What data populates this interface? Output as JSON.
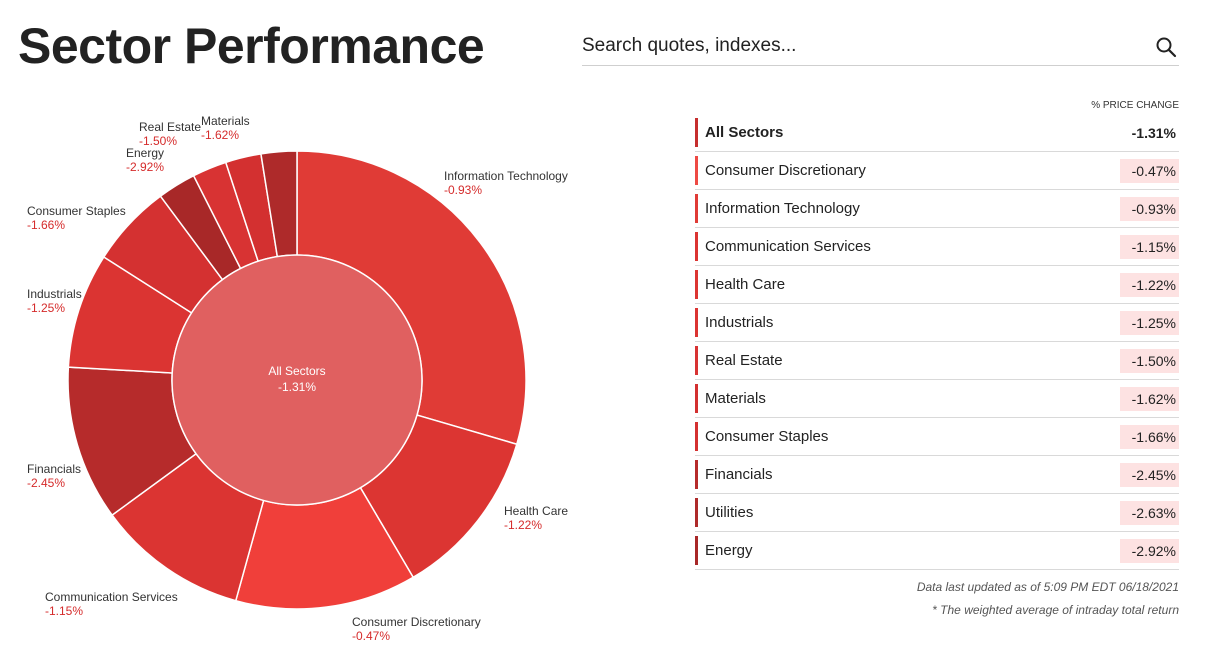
{
  "header": {
    "title": "Sector Performance"
  },
  "search": {
    "placeholder": "Search quotes, indexes..."
  },
  "chart_data": {
    "type": "pie",
    "center": {
      "label": "All Sectors",
      "value": "-1.31%"
    },
    "slices": [
      {
        "name": "Information Technology",
        "value": -0.93,
        "label": "-0.93%",
        "color": "#e03b36"
      },
      {
        "name": "Health Care",
        "value": -1.22,
        "label": "-1.22%",
        "color": "#dc3532"
      },
      {
        "name": "Consumer Discretionary",
        "value": -0.47,
        "label": "-0.47%",
        "color": "#f03f3a"
      },
      {
        "name": "Communication Services",
        "value": -1.15,
        "label": "-1.15%",
        "color": "#db3432"
      },
      {
        "name": "Financials",
        "value": -2.45,
        "label": "-2.45%",
        "color": "#b62b2b"
      },
      {
        "name": "Industrials",
        "value": -1.25,
        "label": "-1.25%",
        "color": "#db3432"
      },
      {
        "name": "Consumer Staples",
        "value": -1.66,
        "label": "-1.66%",
        "color": "#d43131"
      },
      {
        "name": "Energy",
        "value": -2.92,
        "label": "-2.92%",
        "color": "#a82828"
      },
      {
        "name": "Real Estate",
        "value": -1.5,
        "label": "-1.50%",
        "color": "#d83333"
      },
      {
        "name": "Materials",
        "value": -1.62,
        "label": "-1.62%",
        "color": "#d33030"
      },
      {
        "name": "Utilities",
        "value": -2.63,
        "label": "",
        "color": "#ae2a2a"
      }
    ],
    "weights": [
      30.5,
      12.4,
      13.2,
      11.0,
      11.3,
      8.4,
      6.0,
      2.8,
      2.5,
      2.6,
      2.6
    ]
  },
  "table": {
    "column_header": "% PRICE CHANGE",
    "rows": [
      {
        "name": "All Sectors",
        "value": "-1.31%",
        "bar": "#c62e2e"
      },
      {
        "name": "Consumer Discretionary",
        "value": "-0.47%",
        "bar": "#ee4a44"
      },
      {
        "name": "Information Technology",
        "value": "-0.93%",
        "bar": "#e03b36"
      },
      {
        "name": "Communication Services",
        "value": "-1.15%",
        "bar": "#db3432"
      },
      {
        "name": "Health Care",
        "value": "-1.22%",
        "bar": "#dc3532"
      },
      {
        "name": "Industrials",
        "value": "-1.25%",
        "bar": "#db3432"
      },
      {
        "name": "Real Estate",
        "value": "-1.50%",
        "bar": "#d83333"
      },
      {
        "name": "Materials",
        "value": "-1.62%",
        "bar": "#d33030"
      },
      {
        "name": "Consumer Staples",
        "value": "-1.66%",
        "bar": "#d43131"
      },
      {
        "name": "Financials",
        "value": "-2.45%",
        "bar": "#b62b2b"
      },
      {
        "name": "Utilities",
        "value": "-2.63%",
        "bar": "#ae2a2a"
      },
      {
        "name": "Energy",
        "value": "-2.92%",
        "bar": "#a82828"
      }
    ]
  },
  "footer": {
    "updated": "Data last updated as of 5:09 PM EDT 06/18/2021",
    "note": "* The weighted average of intraday total return"
  }
}
